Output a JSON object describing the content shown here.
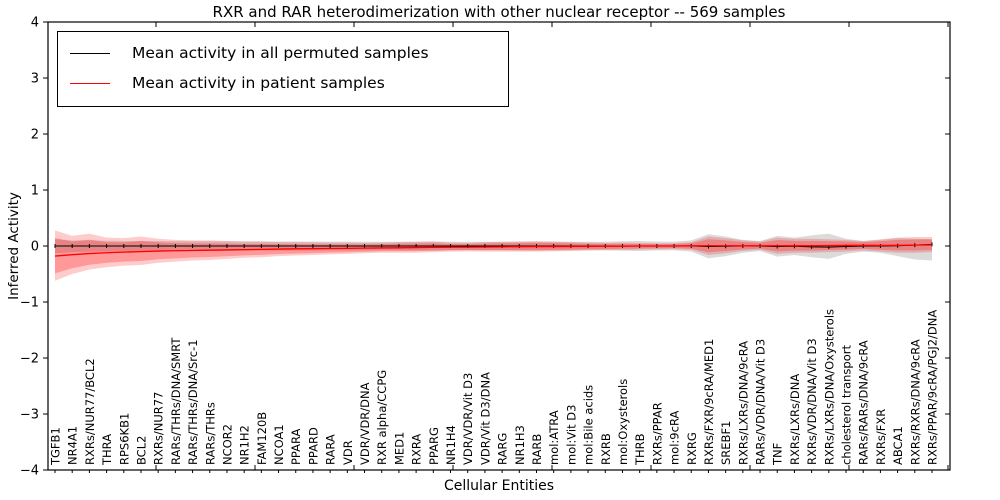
{
  "title": "RXR and RAR heterodimerization with other nuclear receptor -- 569 samples",
  "axes": {
    "xlabel": "Cellular Entities",
    "ylabel": "Inferred Activity",
    "yticks": [
      4,
      3,
      2,
      1,
      0,
      -1,
      -2,
      -3,
      -4
    ],
    "ylim": [
      -4,
      4
    ]
  },
  "legend": {
    "position": "upper left"
  },
  "colors": {
    "permuted_line": "#000000",
    "patient_line": "#ff0000",
    "permuted_band": "#999999",
    "patient_band": "#ff0000",
    "axis": "#000000",
    "background": "#ffffff"
  },
  "chart_data": {
    "type": "line",
    "title": "RXR and RAR heterodimerization with other nuclear receptor -- 569 samples",
    "xlabel": "Cellular Entities",
    "ylabel": "Inferred Activity",
    "ylim": [
      -4,
      4
    ],
    "yticks": [
      -4,
      -3,
      -2,
      -1,
      0,
      1,
      2,
      3,
      4
    ],
    "grid": false,
    "legend_position": "upper left",
    "categories": [
      "TGFB1",
      "NR4A1",
      "RXRs/NUR77/BCL2",
      "THRA",
      "RPS6KB1",
      "BCL2",
      "RXRs/NUR77",
      "RARs/THRs/DNA/SMRT",
      "RARs/THRs/DNA/Src-1",
      "RARs/THRs",
      "NCOR2",
      "NR1H2",
      "FAM120B",
      "NCOA1",
      "PPARA",
      "PPARD",
      "RARA",
      "VDR",
      "VDR/VDR/DNA",
      "RXR alpha/CCPG",
      "MED1",
      "RXRA",
      "PPARG",
      "NR1H4",
      "VDR/VDR/Vit D3",
      "VDR/Vit D3/DNA",
      "RARG",
      "NR1H3",
      "RARB",
      "mol:ATRA",
      "mol:Vit D3",
      "mol:Bile acids",
      "RXRB",
      "mol:Oxysterols",
      "THRB",
      "RXRs/PPAR",
      "mol:9cRA",
      "RXRG",
      "RXRs/FXR/9cRA/MED1",
      "SREBF1",
      "RXRs/LXRs/DNA/9cRA",
      "RARs/VDR/DNA/Vit D3",
      "TNF",
      "RXRs/LXRs/DNA",
      "RXRs/VDR/DNA/Vit D3",
      "RXRs/LXRs/DNA/Oxysterols",
      "cholesterol transport",
      "RARs/RARs/DNA/9cRA",
      "RXRs/FXR",
      "ABCA1",
      "RXRs/RXRs/DNA/9cRA",
      "RXRs/PPAR/9cRA/PGJ2/DNA"
    ],
    "series": [
      {
        "name": "Mean activity in all permuted samples",
        "color": "#000000",
        "band_color": "#999999",
        "values": [
          0,
          0,
          0,
          0,
          0,
          0,
          0,
          0,
          0,
          0,
          0,
          0,
          0,
          0,
          0,
          0,
          0,
          0,
          0,
          0,
          0,
          0,
          0,
          0,
          0,
          0,
          0,
          0,
          0,
          0,
          0,
          0,
          0,
          0,
          0,
          0,
          0,
          0,
          -0.01,
          -0.005,
          0,
          0,
          -0.01,
          -0.005,
          -0.015,
          -0.02,
          -0.01,
          0,
          0,
          0.005,
          0.015,
          0.03
        ],
        "band_hi": [
          0.12,
          0.1,
          0.1,
          0.095,
          0.09,
          0.09,
          0.09,
          0.088,
          0.086,
          0.085,
          0.084,
          0.083,
          0.082,
          0.081,
          0.08,
          0.08,
          0.079,
          0.078,
          0.077,
          0.076,
          0.075,
          0.078,
          0.08,
          0.077,
          0.075,
          0.076,
          0.077,
          0.078,
          0.08,
          0.078,
          0.076,
          0.075,
          0.076,
          0.085,
          0.09,
          0.08,
          0.078,
          0.1,
          0.21,
          0.17,
          0.11,
          0.09,
          0.18,
          0.15,
          0.19,
          0.22,
          0.13,
          0.09,
          0.11,
          0.14,
          0.13,
          0.12
        ],
        "band_lo": [
          -0.13,
          -0.11,
          -0.1,
          -0.1,
          -0.095,
          -0.095,
          -0.09,
          -0.09,
          -0.088,
          -0.086,
          -0.085,
          -0.084,
          -0.083,
          -0.082,
          -0.081,
          -0.08,
          -0.08,
          -0.079,
          -0.078,
          -0.077,
          -0.076,
          -0.078,
          -0.08,
          -0.077,
          -0.075,
          -0.076,
          -0.077,
          -0.08,
          -0.082,
          -0.08,
          -0.078,
          -0.076,
          -0.076,
          -0.085,
          -0.09,
          -0.08,
          -0.078,
          -0.1,
          -0.22,
          -0.18,
          -0.12,
          -0.09,
          -0.19,
          -0.16,
          -0.2,
          -0.23,
          -0.14,
          -0.1,
          -0.12,
          -0.18,
          -0.24,
          -0.26
        ]
      },
      {
        "name": "Mean activity in patient samples",
        "color": "#ff0000",
        "band_color": "#ff0000",
        "values": [
          -0.18,
          -0.155,
          -0.135,
          -0.12,
          -0.11,
          -0.1,
          -0.09,
          -0.085,
          -0.08,
          -0.075,
          -0.07,
          -0.065,
          -0.06,
          -0.055,
          -0.05,
          -0.048,
          -0.045,
          -0.042,
          -0.038,
          -0.035,
          -0.032,
          -0.028,
          -0.025,
          -0.022,
          -0.02,
          -0.018,
          -0.015,
          -0.012,
          -0.01,
          -0.01,
          -0.008,
          -0.006,
          -0.005,
          -0.003,
          0,
          0,
          0,
          0.003,
          0.005,
          0.005,
          0.003,
          0.005,
          0.005,
          0.003,
          0.005,
          0.008,
          0.01,
          0.012,
          0.01,
          0.012,
          0.015,
          0.02
        ],
        "band_hi": [
          0.28,
          0.18,
          0.22,
          0.15,
          0.14,
          0.17,
          0.13,
          0.11,
          0.1,
          0.1,
          0.09,
          0.08,
          0.08,
          0.07,
          0.07,
          0.065,
          0.06,
          0.06,
          0.055,
          0.06,
          0.07,
          0.075,
          0.08,
          0.06,
          0.055,
          0.07,
          0.075,
          0.08,
          0.085,
          0.08,
          0.07,
          0.06,
          0.055,
          0.06,
          0.055,
          0.05,
          0.05,
          0.07,
          0.17,
          0.14,
          0.1,
          0.08,
          0.15,
          0.13,
          0.13,
          0.12,
          0.11,
          0.09,
          0.12,
          0.15,
          0.16,
          0.16
        ],
        "band_lo": [
          -0.62,
          -0.5,
          -0.42,
          -0.38,
          -0.35,
          -0.34,
          -0.3,
          -0.28,
          -0.26,
          -0.25,
          -0.23,
          -0.21,
          -0.2,
          -0.18,
          -0.17,
          -0.16,
          -0.15,
          -0.14,
          -0.13,
          -0.12,
          -0.12,
          -0.12,
          -0.11,
          -0.1,
          -0.095,
          -0.1,
          -0.1,
          -0.1,
          -0.1,
          -0.095,
          -0.09,
          -0.08,
          -0.075,
          -0.07,
          -0.065,
          -0.06,
          -0.055,
          -0.07,
          -0.16,
          -0.13,
          -0.09,
          -0.07,
          -0.14,
          -0.12,
          -0.12,
          -0.11,
          -0.1,
          -0.08,
          -0.1,
          -0.12,
          -0.12,
          -0.11
        ]
      }
    ]
  }
}
